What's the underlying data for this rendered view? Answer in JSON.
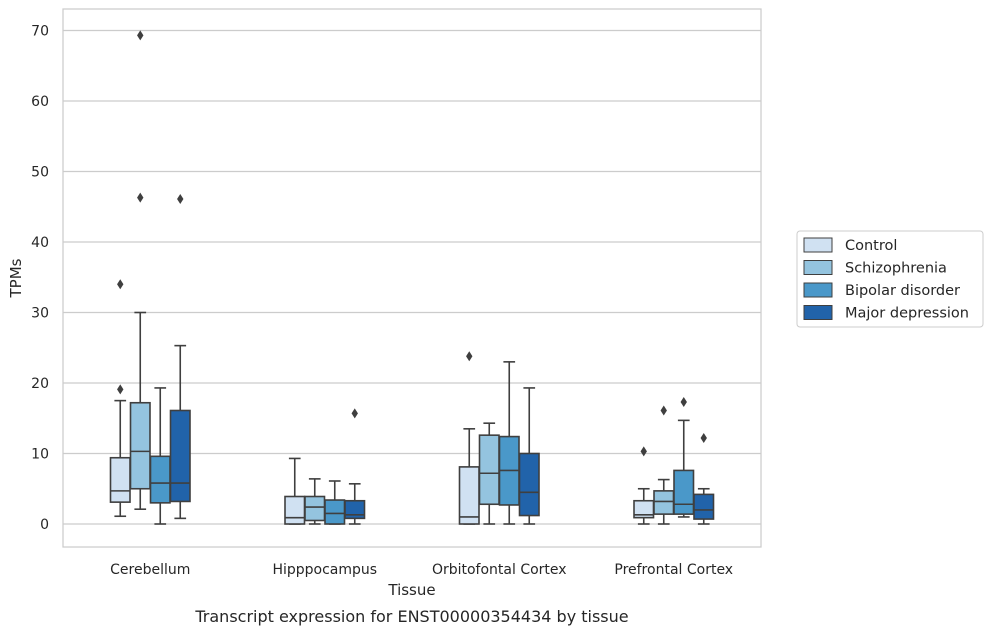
{
  "chart_data": {
    "type": "box",
    "xlabel": "Tissue",
    "ylabel": "TPMs",
    "caption": "Transcript expression for ENST00000354434 by tissue",
    "ylim": [
      -3.4,
      73
    ],
    "yticks": [
      0,
      10,
      20,
      30,
      40,
      50,
      60,
      70
    ],
    "grid": "horizontal",
    "legend_position": "right",
    "categories": [
      "Cerebellum",
      "Hipppocampus",
      "Orbitofontal Cortex",
      "Prefrontal Cortex"
    ],
    "series": [
      {
        "name": "Control",
        "color": "#d0e1f2",
        "boxes": [
          {
            "whislo": 1.1,
            "q1": 3.1,
            "med": 4.7,
            "q3": 9.4,
            "whishi": 17.5,
            "fliers": [
              19.1,
              34.0
            ]
          },
          {
            "whislo": 0.0,
            "q1": 0.0,
            "med": 0.9,
            "q3": 3.9,
            "whishi": 9.3,
            "fliers": []
          },
          {
            "whislo": 0.0,
            "q1": 0.0,
            "med": 1.0,
            "q3": 8.1,
            "whishi": 13.5,
            "fliers": [
              23.8
            ]
          },
          {
            "whislo": 0.0,
            "q1": 0.9,
            "med": 1.3,
            "q3": 3.3,
            "whishi": 5.0,
            "fliers": [
              10.3
            ]
          }
        ]
      },
      {
        "name": "Schizophrenia",
        "color": "#94c4df",
        "boxes": [
          {
            "whislo": 2.1,
            "q1": 5.0,
            "med": 10.3,
            "q3": 17.2,
            "whishi": 30.0,
            "fliers": [
              46.3,
              69.3
            ]
          },
          {
            "whislo": 0.0,
            "q1": 0.5,
            "med": 2.4,
            "q3": 3.9,
            "whishi": 6.4,
            "fliers": []
          },
          {
            "whislo": 0.0,
            "q1": 2.8,
            "med": 7.2,
            "q3": 12.6,
            "whishi": 14.3,
            "fliers": []
          },
          {
            "whislo": 0.0,
            "q1": 1.4,
            "med": 3.2,
            "q3": 4.7,
            "whishi": 6.3,
            "fliers": [
              16.1
            ]
          }
        ]
      },
      {
        "name": "Bipolar disorder",
        "color": "#4a98c9",
        "boxes": [
          {
            "whislo": 0.0,
            "q1": 3.0,
            "med": 5.8,
            "q3": 9.6,
            "whishi": 19.3,
            "fliers": []
          },
          {
            "whislo": 0.0,
            "q1": 0.0,
            "med": 1.5,
            "q3": 3.4,
            "whishi": 6.1,
            "fliers": []
          },
          {
            "whislo": 0.0,
            "q1": 2.7,
            "med": 7.6,
            "q3": 12.4,
            "whishi": 23.0,
            "fliers": []
          },
          {
            "whislo": 1.0,
            "q1": 1.4,
            "med": 2.8,
            "q3": 7.6,
            "whishi": 14.7,
            "fliers": [
              17.3
            ]
          }
        ]
      },
      {
        "name": "Major depression",
        "color": "#2163aa",
        "boxes": [
          {
            "whislo": 0.8,
            "q1": 3.2,
            "med": 5.8,
            "q3": 16.1,
            "whishi": 25.3,
            "fliers": [
              46.1
            ]
          },
          {
            "whislo": 0.0,
            "q1": 0.8,
            "med": 1.3,
            "q3": 3.3,
            "whishi": 5.7,
            "fliers": [
              15.7
            ]
          },
          {
            "whislo": 0.0,
            "q1": 1.2,
            "med": 4.5,
            "q3": 10.0,
            "whishi": 19.3,
            "fliers": []
          },
          {
            "whislo": 0.0,
            "q1": 0.7,
            "med": 2.0,
            "q3": 4.2,
            "whishi": 5.0,
            "fliers": [
              12.2
            ]
          }
        ]
      }
    ]
  }
}
